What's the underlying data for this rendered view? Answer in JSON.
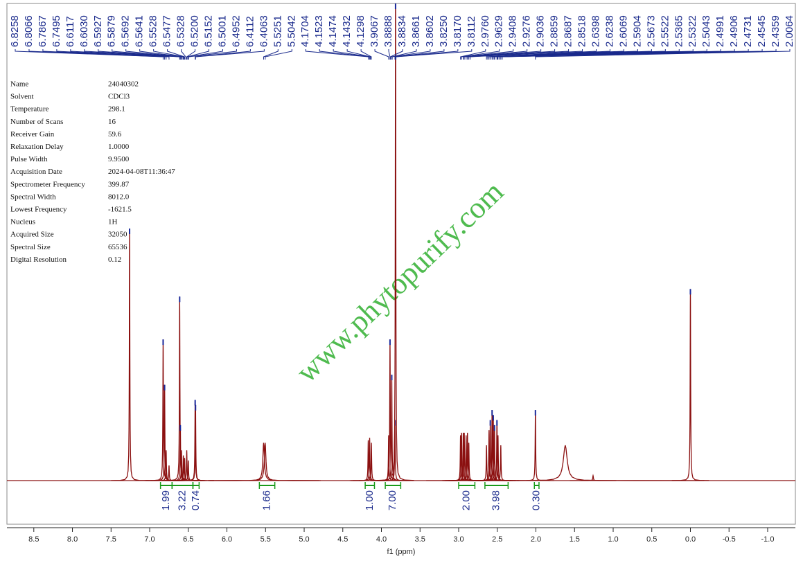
{
  "chart_data": {
    "type": "spectrum",
    "x_label": "f1 (ppm)",
    "xlim": [
      8.83,
      -1.35
    ],
    "xticks": [
      8.5,
      {
        "value": 8,
        "label": "8.0"
      },
      7.5,
      {
        "value": 7,
        "label": "7.0"
      },
      6.5,
      {
        "value": 6,
        "label": "6.0"
      },
      5.5,
      {
        "value": 5,
        "label": "5.0"
      },
      4.5,
      {
        "value": 4,
        "label": "4.0"
      },
      3.5,
      {
        "value": 3,
        "label": "3.0"
      },
      2.5,
      {
        "value": 2,
        "label": "2.0"
      },
      1.5,
      {
        "value": 1,
        "label": "1.0"
      },
      0.5,
      {
        "value": 0,
        "label": "0.0"
      },
      -0.5,
      {
        "value": -1,
        "label": "-1.0"
      }
    ],
    "color": "#8b1010",
    "watermark": "www.phytopurify.com",
    "parameters": [
      {
        "name": "Name",
        "value": "24040302"
      },
      {
        "name": "Solvent",
        "value": "CDCl3"
      },
      {
        "name": "Temperature",
        "value": "298.1"
      },
      {
        "name": "Number of Scans",
        "value": "16"
      },
      {
        "name": "Receiver Gain",
        "value": "59.6"
      },
      {
        "name": "Relaxation Delay",
        "value": "1.0000"
      },
      {
        "name": "Pulse Width",
        "value": "9.9500"
      },
      {
        "name": "Acquisition Date",
        "value": "2024-04-08T11:36:47"
      },
      {
        "name": "Spectrometer Frequency",
        "value": "399.87"
      },
      {
        "name": "Spectral Width",
        "value": "8012.0"
      },
      {
        "name": "Lowest Frequency",
        "value": "-1621.5"
      },
      {
        "name": "Nucleus",
        "value": "1H"
      },
      {
        "name": "Acquired Size",
        "value": "32050"
      },
      {
        "name": "Spectral Size",
        "value": "65536"
      },
      {
        "name": "Digital Resolution",
        "value": "0.12"
      }
    ],
    "peaks": [
      6.8258,
      6.8066,
      6.7867,
      6.7495,
      6.6117,
      {
        "value": 6.603,
        "label": "6.6030"
      },
      6.5927,
      6.5879,
      6.5692,
      6.5641,
      6.5528,
      6.5477,
      6.5328,
      {
        "value": 6.52,
        "label": "6.5200"
      },
      6.5152,
      6.5001,
      6.4952,
      6.4112,
      6.4063,
      5.5251,
      5.5042,
      4.1704,
      4.1523,
      4.1474,
      4.1432,
      4.1298,
      3.9067,
      3.8888,
      3.8834,
      3.8661,
      3.8602,
      {
        "value": 3.825,
        "label": "3.8250"
      },
      {
        "value": 3.817,
        "label": "3.8170"
      },
      3.8112,
      {
        "value": 2.976,
        "label": "2.9760"
      },
      2.9629,
      2.9408,
      2.9276,
      2.9036,
      2.8859,
      2.8687,
      2.8518,
      2.6398,
      2.6238,
      2.6069,
      2.5904,
      2.5673,
      2.5522,
      2.5365,
      2.5322,
      2.5043,
      2.4991,
      2.4906,
      2.4731,
      2.4545,
      2.4359,
      2.0064
    ],
    "integrals": [
      {
        "value": 1.99,
        "from": 6.86,
        "to": 6.71
      },
      {
        "value": 3.22,
        "from": 6.71,
        "to": 6.44
      },
      {
        "value": 0.74,
        "from": 6.44,
        "to": 6.36
      },
      {
        "value": 1.66,
        "from": 5.58,
        "to": 5.38
      },
      {
        "value": 1,
        "label": "1.00",
        "from": 4.21,
        "to": 4.09
      },
      {
        "value": 7,
        "label": "7.00",
        "from": 3.95,
        "to": 3.75
      },
      {
        "value": 2,
        "label": "2.00",
        "from": 3.0,
        "to": 2.79
      },
      {
        "value": 3.98,
        "label": "3.98",
        "from": 2.66,
        "to": 2.36
      },
      {
        "value": 0.3,
        "label": "0.30",
        "from": 2.02,
        "to": 1.96
      }
    ],
    "signals": [
      {
        "ppm": 7.26,
        "height": 100,
        "width": 0.004
      },
      {
        "ppm": 6.8258,
        "height": 56,
        "width": 0.004
      },
      {
        "ppm": 6.8066,
        "height": 38,
        "width": 0.004
      },
      {
        "ppm": 6.7867,
        "height": 12,
        "width": 0.004
      },
      {
        "ppm": 6.7495,
        "height": 6,
        "width": 0.004
      },
      {
        "ppm": 6.6117,
        "height": 73,
        "width": 0.004
      },
      {
        "ppm": 6.603,
        "height": 22,
        "width": 0.004
      },
      {
        "ppm": 6.5879,
        "height": 12,
        "width": 0.004
      },
      {
        "ppm": 6.5641,
        "height": 10,
        "width": 0.004
      },
      {
        "ppm": 6.5477,
        "height": 9,
        "width": 0.004
      },
      {
        "ppm": 6.52,
        "height": 12,
        "width": 0.004
      },
      {
        "ppm": 6.5001,
        "height": 8,
        "width": 0.004
      },
      {
        "ppm": 6.4112,
        "height": 32,
        "width": 0.004
      },
      {
        "ppm": 6.4063,
        "height": 30,
        "width": 0.004
      },
      {
        "ppm": 5.525,
        "height": 15,
        "width": 0.012
      },
      {
        "ppm": 5.505,
        "height": 15,
        "width": 0.012
      },
      {
        "ppm": 4.1704,
        "height": 16,
        "width": 0.004
      },
      {
        "ppm": 4.1523,
        "height": 17,
        "width": 0.004
      },
      {
        "ppm": 4.1298,
        "height": 15,
        "width": 0.004
      },
      {
        "ppm": 3.9067,
        "height": 18,
        "width": 0.004
      },
      {
        "ppm": 3.8888,
        "height": 56,
        "width": 0.004
      },
      {
        "ppm": 3.8661,
        "height": 42,
        "width": 0.004
      },
      {
        "ppm": 3.825,
        "height": 24,
        "width": 0.004
      },
      {
        "ppm": 3.817,
        "height": 200,
        "width": 0.004
      },
      {
        "ppm": 2.976,
        "height": 18,
        "width": 0.004
      },
      {
        "ppm": 2.9629,
        "height": 19,
        "width": 0.004
      },
      {
        "ppm": 2.9408,
        "height": 19,
        "width": 0.004
      },
      {
        "ppm": 2.9276,
        "height": 19,
        "width": 0.004
      },
      {
        "ppm": 2.9036,
        "height": 18,
        "width": 0.004
      },
      {
        "ppm": 2.8859,
        "height": 19,
        "width": 0.004
      },
      {
        "ppm": 2.8687,
        "height": 15,
        "width": 0.004
      },
      {
        "ppm": 2.6398,
        "height": 14,
        "width": 0.004
      },
      {
        "ppm": 2.6069,
        "height": 20,
        "width": 0.004
      },
      {
        "ppm": 2.5904,
        "height": 24,
        "width": 0.004
      },
      {
        "ppm": 2.5673,
        "height": 28,
        "width": 0.004
      },
      {
        "ppm": 2.5522,
        "height": 26,
        "width": 0.004
      },
      {
        "ppm": 2.5365,
        "height": 22,
        "width": 0.004
      },
      {
        "ppm": 2.5043,
        "height": 24,
        "width": 0.004
      },
      {
        "ppm": 2.4906,
        "height": 18,
        "width": 0.004
      },
      {
        "ppm": 2.4545,
        "height": 14,
        "width": 0.004
      },
      {
        "ppm": 2.0064,
        "height": 28,
        "width": 0.004
      },
      {
        "ppm": 1.62,
        "height": 14,
        "width": 0.03
      },
      {
        "ppm": 1.26,
        "height": 2,
        "width": 0.005
      },
      {
        "ppm": 0,
        "height": 76,
        "width": 0.004
      }
    ]
  }
}
